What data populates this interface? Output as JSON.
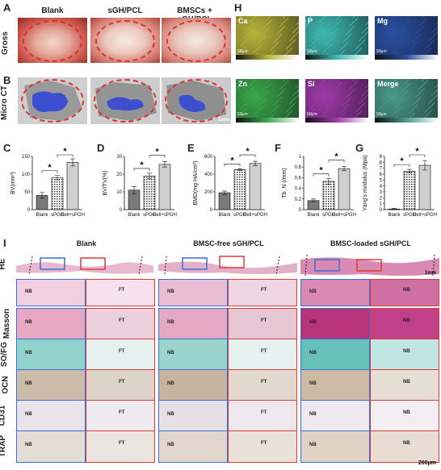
{
  "panels": {
    "A": "A",
    "B": "B",
    "C": "C",
    "D": "D",
    "E": "E",
    "F": "F",
    "G": "G",
    "H": "H",
    "I": "I"
  },
  "top_columns": [
    "Blank",
    "sGH/PCL",
    "BMSCs + sGH/PCL"
  ],
  "top_rows": [
    "Gross",
    "Micro CT"
  ],
  "ct_scale": "1mm",
  "eds_maps": [
    {
      "label": "Ca",
      "color": "#b8b43a"
    },
    {
      "label": "P",
      "color": "#3fb9b0"
    },
    {
      "label": "Mg",
      "color": "#2a4fa0"
    },
    {
      "label": "Zn",
      "color": "#3aa84a"
    },
    {
      "label": "Si",
      "color": "#a03aa8"
    },
    {
      "label": "Merge",
      "color": "#4a9a8a"
    }
  ],
  "eds_scale": "50μm",
  "significance_mark": "*",
  "chart_data": [
    {
      "type": "bar",
      "panel": "C",
      "categories": [
        "Blank",
        "sPGH",
        "Cell+sPGH"
      ],
      "values": [
        40,
        90,
        133
      ],
      "errors": [
        8,
        6,
        10
      ],
      "ylabel": "BV(mm³)",
      "ylim": [
        0,
        150
      ],
      "ticks": [
        0,
        50,
        100,
        150
      ]
    },
    {
      "type": "bar",
      "panel": "D",
      "categories": [
        "Blank",
        "sPGH",
        "Cell+sPGH"
      ],
      "values": [
        11,
        19,
        25.5
      ],
      "errors": [
        2,
        1.5,
        1.5
      ],
      "ylabel": "BV/TV(%)",
      "ylim": [
        0,
        30
      ],
      "ticks": [
        0,
        10,
        20,
        30
      ]
    },
    {
      "type": "bar",
      "panel": "E",
      "categories": [
        "Blank",
        "sPGH",
        "Cell+sPGH"
      ],
      "values": [
        190,
        450,
        520
      ],
      "errors": [
        20,
        10,
        25
      ],
      "ylabel": "BMD(mg HA/cm³)",
      "ylim": [
        0,
        600
      ],
      "ticks": [
        0,
        200,
        400,
        600
      ]
    },
    {
      "type": "bar",
      "panel": "F",
      "categories": [
        "Blank",
        "sPGH",
        "Cell+sPGH"
      ],
      "values": [
        0.17,
        0.53,
        0.77
      ],
      "errors": [
        0.03,
        0.05,
        0.04
      ],
      "ylabel": "Tb. N (/mm)",
      "ylim": [
        0,
        1.0
      ],
      "ticks": [
        0.0,
        0.2,
        0.4,
        0.6,
        0.8,
        1.0
      ]
    },
    {
      "type": "bar",
      "panel": "G",
      "categories": [
        "Blank",
        "sPGH",
        "Cell+sPGH"
      ],
      "values": [
        0.1,
        6.5,
        7.5
      ],
      "errors": [
        0.1,
        0.3,
        0.8
      ],
      "ylabel": "Yang's modulus (Mpa)",
      "ylim": [
        0,
        9
      ],
      "ticks": [
        0,
        1,
        2,
        3,
        4,
        5,
        6,
        7,
        8,
        9
      ]
    }
  ],
  "histology": {
    "columns": [
      "Blank",
      "BMSC-free sGH/PCL",
      "BMSC-loaded sGH/PCL"
    ],
    "rows": [
      "HE",
      "Masson",
      "SO/FG",
      "OCN",
      "CD31",
      "TRAP"
    ],
    "tags": {
      "nb": "NB",
      "ft": "FT"
    },
    "scale_overview": "1mm",
    "scale_detail": "200μm"
  }
}
